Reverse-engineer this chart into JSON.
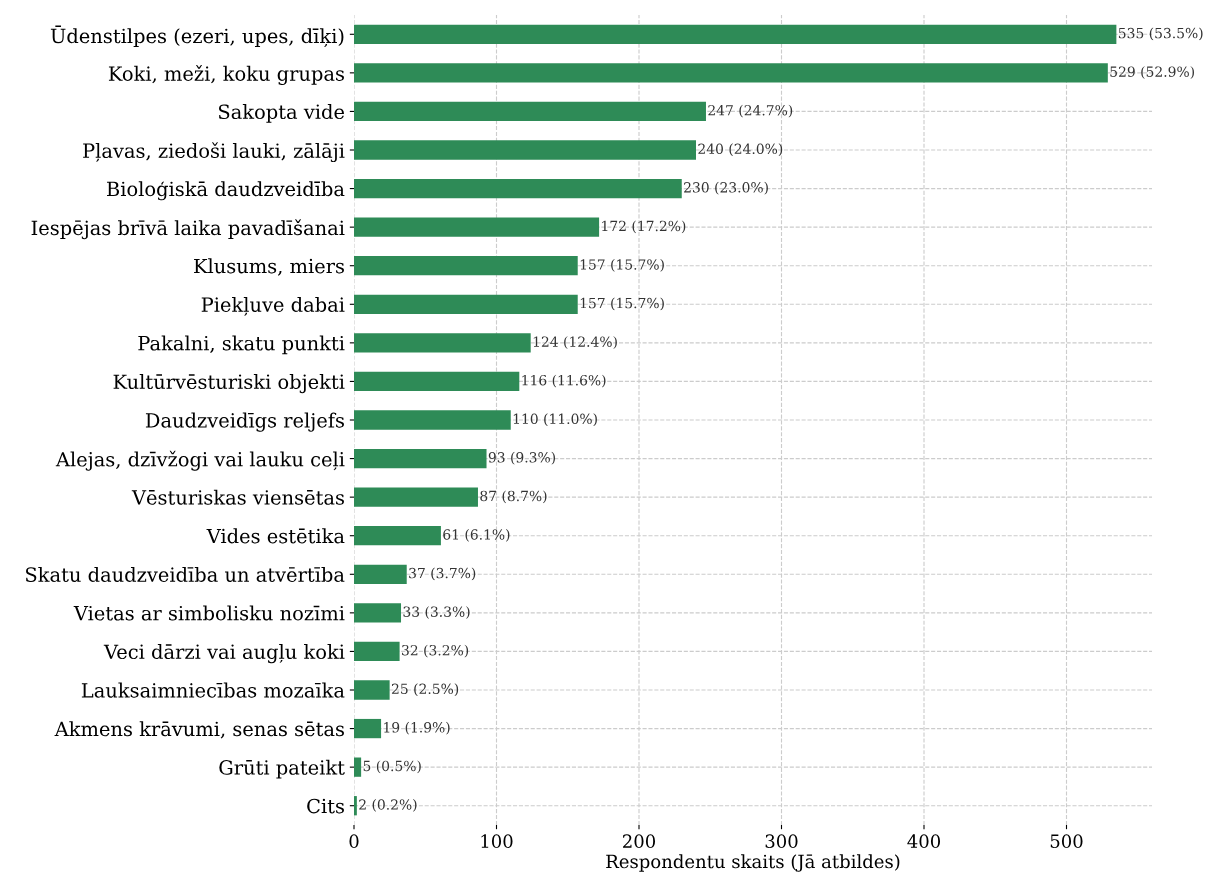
{
  "chart_data": {
    "type": "bar",
    "orientation": "horizontal",
    "xlabel": "Respondentu skaits (Jā atbildes)",
    "categories": [
      "Ūdenstilpes (ezeri, upes, dīķi)",
      "Koki, meži, koku grupas",
      "Sakopta vide",
      "Pļavas, ziedoši lauki, zālāji",
      "Bioloģiskā daudzveidība",
      "Iespējas brīvā laika pavadīšanai",
      "Klusums, miers",
      "Piekļuve dabai",
      "Pakalni, skatu punkti",
      "Kultūrvēsturiski objekti",
      "Daudzveidīgs reljefs",
      "Alejas, dzīvžogi vai lauku ceļi",
      "Vēsturiskas viensētas",
      "Vides estētika",
      "Skatu daudzveidība un atvērtība",
      "Vietas ar simbolisku nozīmi",
      "Veci dārzi vai augļu koki",
      "Lauksaimniecības mozaīka",
      "Akmens krāvumi, senas sētas",
      "Grūti pateikt",
      "Cits"
    ],
    "values": [
      535,
      529,
      247,
      240,
      230,
      172,
      157,
      157,
      124,
      116,
      110,
      93,
      87,
      61,
      37,
      33,
      32,
      25,
      19,
      5,
      2
    ],
    "value_labels": [
      "535 (53.5%)",
      "529 (52.9%)",
      "247 (24.7%)",
      "240 (24.0%)",
      "230 (23.0%)",
      "172 (17.2%)",
      "157 (15.7%)",
      "157 (15.7%)",
      "124 (12.4%)",
      "116 (11.6%)",
      "110 (11.0%)",
      "93 (9.3%)",
      "87 (8.7%)",
      "61 (6.1%)",
      "37 (3.7%)",
      "33 (3.3%)",
      "32 (3.2%)",
      "25 (2.5%)",
      "19 (1.9%)",
      "5 (0.5%)",
      "2 (0.2%)"
    ],
    "color": "#2e8b57",
    "xlim": [
      0,
      560
    ],
    "xticks": [
      0,
      100,
      200,
      300,
      400,
      500
    ],
    "grid": true
  }
}
